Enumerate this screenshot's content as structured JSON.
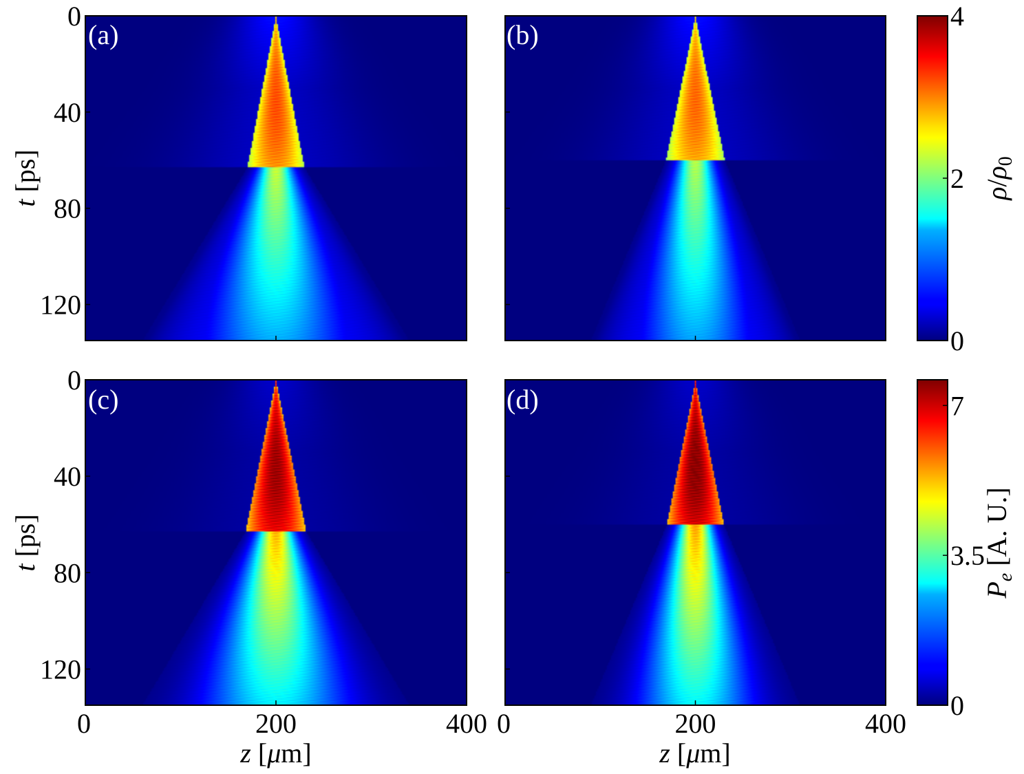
{
  "chart_data": [
    {
      "type": "heatmap",
      "panel": "(a)",
      "colorbar_key": "density",
      "xlim": [
        0,
        400
      ],
      "ylim": [
        0,
        135
      ],
      "xticks": [
        "",
        "",
        ""
      ],
      "yticks": [
        "0",
        "40",
        "80",
        "120"
      ],
      "peak_value": 3.2,
      "cone": {
        "apex_t": 0,
        "apex_z": 200,
        "break_t": 63,
        "break_halfwidth": 30,
        "end_halfwidth": 140
      }
    },
    {
      "type": "heatmap",
      "panel": "(b)",
      "colorbar_key": "density",
      "xlim": [
        0,
        400
      ],
      "ylim": [
        0,
        135
      ],
      "xticks": [
        "",
        "",
        ""
      ],
      "yticks": [
        "",
        "",
        "",
        ""
      ],
      "peak_value": 3.1,
      "cone": {
        "apex_t": 0,
        "apex_z": 200,
        "break_t": 60,
        "break_halfwidth": 31,
        "end_halfwidth": 110
      }
    },
    {
      "type": "heatmap",
      "panel": "(c)",
      "colorbar_key": "pressure",
      "xlim": [
        0,
        400
      ],
      "ylim": [
        0,
        135
      ],
      "xticks": [
        "0",
        "200",
        "400"
      ],
      "yticks": [
        "0",
        "40",
        "80",
        "120"
      ],
      "peak_value": 7.4,
      "cone": {
        "apex_t": 0,
        "apex_z": 200,
        "break_t": 63,
        "break_halfwidth": 32,
        "end_halfwidth": 140
      }
    },
    {
      "type": "heatmap",
      "panel": "(d)",
      "colorbar_key": "pressure",
      "xlim": [
        0,
        400
      ],
      "ylim": [
        0,
        135
      ],
      "xticks": [
        "0",
        "200",
        "400"
      ],
      "yticks": [
        "",
        "",
        "",
        ""
      ],
      "peak_value": 7.6,
      "cone": {
        "apex_t": 0,
        "apex_z": 200,
        "break_t": 60,
        "break_halfwidth": 30,
        "end_halfwidth": 110
      }
    }
  ],
  "axes": {
    "ylabel_var": "t",
    "ylabel_unit": " [ps]",
    "xlabel_var": "z",
    "xlabel_unit_pre": " [",
    "xlabel_mu": "μ",
    "xlabel_unit_post": "m]"
  },
  "colorbars": {
    "density": {
      "range": [
        0,
        4
      ],
      "ticks": [
        "4",
        "2",
        "0"
      ],
      "tick_values": [
        4,
        2,
        0
      ],
      "label_rho": "ρ",
      "label_slash": "/",
      "label_rho0": "ρ",
      "label_sub": "0"
    },
    "pressure": {
      "range": [
        0,
        7.6
      ],
      "ticks": [
        "7",
        "3.5",
        "0"
      ],
      "tick_values": [
        7,
        3.5,
        0
      ],
      "label_P": "P",
      "label_sub": "e",
      "label_unit": " [A. U.]"
    }
  },
  "colormap": "jet"
}
